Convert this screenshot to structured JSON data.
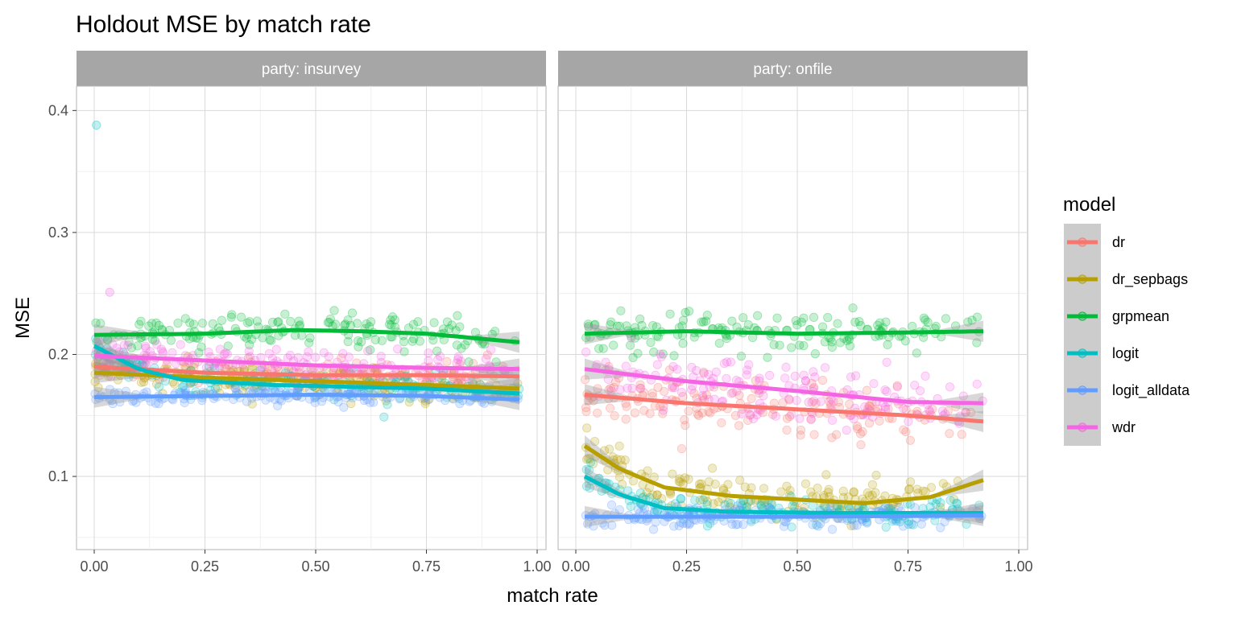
{
  "chart_data": {
    "type": "scatter",
    "title": "Holdout MSE by match rate",
    "xlabel": "match rate",
    "ylabel": "MSE",
    "xlim": [
      -0.04,
      1.02
    ],
    "ylim": [
      0.04,
      0.42
    ],
    "x_ticks": [
      "0.00",
      "0.25",
      "0.50",
      "0.75",
      "1.00"
    ],
    "x_tick_values": [
      0,
      0.25,
      0.5,
      0.75,
      1.0
    ],
    "y_ticks": [
      "0.1",
      "0.2",
      "0.3",
      "0.4"
    ],
    "y_tick_values": [
      0.1,
      0.2,
      0.3,
      0.4
    ],
    "grid": true,
    "legend": {
      "title": "model",
      "position": "right"
    },
    "series_styles": [
      {
        "name": "dr",
        "color": "#F8766D"
      },
      {
        "name": "dr_sepbags",
        "color": "#B79F00"
      },
      {
        "name": "grpmean",
        "color": "#00BA38"
      },
      {
        "name": "logit",
        "color": "#00BFC4"
      },
      {
        "name": "logit_alldata",
        "color": "#619CFF"
      },
      {
        "name": "wdr",
        "color": "#F564E3"
      }
    ],
    "facets": [
      {
        "label": "party: insurvey",
        "x_range": [
          0.0,
          0.96
        ],
        "series": [
          {
            "name": "dr",
            "center": 0.186,
            "spread": 0.006,
            "trend": [
              [
                0.0,
                0.19
              ],
              [
                0.25,
                0.185
              ],
              [
                0.5,
                0.183
              ],
              [
                0.75,
                0.183
              ],
              [
                0.96,
                0.182
              ]
            ]
          },
          {
            "name": "dr_sepbags",
            "center": 0.18,
            "spread": 0.006,
            "trend": [
              [
                0.0,
                0.185
              ],
              [
                0.25,
                0.181
              ],
              [
                0.5,
                0.178
              ],
              [
                0.75,
                0.175
              ],
              [
                0.96,
                0.172
              ]
            ]
          },
          {
            "name": "grpmean",
            "center": 0.218,
            "spread": 0.007,
            "trend": [
              [
                0.0,
                0.216
              ],
              [
                0.25,
                0.217
              ],
              [
                0.45,
                0.22
              ],
              [
                0.6,
                0.219
              ],
              [
                0.75,
                0.217
              ],
              [
                0.96,
                0.21
              ]
            ]
          },
          {
            "name": "logit",
            "center": 0.175,
            "spread": 0.006,
            "trend": [
              [
                0.0,
                0.207
              ],
              [
                0.1,
                0.188
              ],
              [
                0.2,
                0.179
              ],
              [
                0.4,
                0.175
              ],
              [
                0.75,
                0.172
              ],
              [
                0.96,
                0.168
              ]
            ]
          },
          {
            "name": "logit_alldata",
            "center": 0.166,
            "spread": 0.003,
            "trend": [
              [
                0.0,
                0.165
              ],
              [
                0.25,
                0.166
              ],
              [
                0.5,
                0.167
              ],
              [
                0.75,
                0.166
              ],
              [
                0.96,
                0.163
              ]
            ]
          },
          {
            "name": "wdr",
            "center": 0.191,
            "spread": 0.007,
            "trend": [
              [
                0.0,
                0.199
              ],
              [
                0.25,
                0.195
              ],
              [
                0.5,
                0.191
              ],
              [
                0.75,
                0.189
              ],
              [
                0.96,
                0.188
              ]
            ]
          }
        ],
        "outliers": [
          {
            "series": "logit",
            "x": 0.005,
            "y": 0.388
          },
          {
            "series": "wdr",
            "x": 0.035,
            "y": 0.251
          }
        ]
      },
      {
        "label": "party: onfile",
        "x_range": [
          0.02,
          0.92
        ],
        "series": [
          {
            "name": "dr",
            "center": 0.157,
            "spread": 0.01,
            "trend": [
              [
                0.02,
                0.167
              ],
              [
                0.25,
                0.16
              ],
              [
                0.5,
                0.155
              ],
              [
                0.75,
                0.15
              ],
              [
                0.92,
                0.145
              ]
            ]
          },
          {
            "name": "dr_sepbags",
            "center": 0.085,
            "spread": 0.008,
            "trend": [
              [
                0.02,
                0.125
              ],
              [
                0.1,
                0.106
              ],
              [
                0.2,
                0.091
              ],
              [
                0.35,
                0.084
              ],
              [
                0.5,
                0.081
              ],
              [
                0.65,
                0.078
              ],
              [
                0.8,
                0.083
              ],
              [
                0.92,
                0.097
              ]
            ]
          },
          {
            "name": "grpmean",
            "center": 0.218,
            "spread": 0.008,
            "trend": [
              [
                0.02,
                0.217
              ],
              [
                0.25,
                0.219
              ],
              [
                0.5,
                0.217
              ],
              [
                0.75,
                0.218
              ],
              [
                0.92,
                0.219
              ]
            ]
          },
          {
            "name": "logit",
            "center": 0.072,
            "spread": 0.005,
            "trend": [
              [
                0.02,
                0.1
              ],
              [
                0.1,
                0.085
              ],
              [
                0.2,
                0.074
              ],
              [
                0.35,
                0.071
              ],
              [
                0.6,
                0.07
              ],
              [
                0.92,
                0.07
              ]
            ]
          },
          {
            "name": "logit_alldata",
            "center": 0.066,
            "spread": 0.004,
            "trend": [
              [
                0.02,
                0.067
              ],
              [
                0.5,
                0.067
              ],
              [
                0.92,
                0.068
              ]
            ]
          },
          {
            "name": "wdr",
            "center": 0.175,
            "spread": 0.012,
            "trend": [
              [
                0.02,
                0.188
              ],
              [
                0.25,
                0.178
              ],
              [
                0.5,
                0.17
              ],
              [
                0.75,
                0.161
              ],
              [
                0.92,
                0.16
              ]
            ]
          }
        ],
        "outliers": []
      }
    ]
  }
}
